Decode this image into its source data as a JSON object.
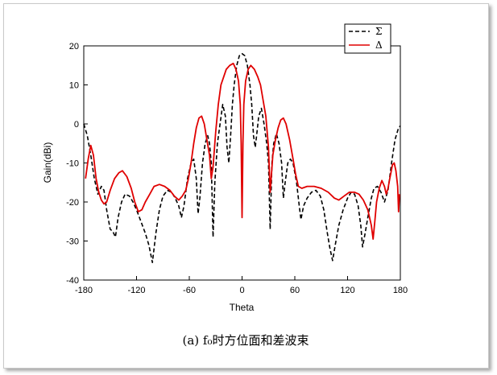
{
  "chart_data": {
    "type": "line",
    "xlabel": "Theta",
    "ylabel": "Gain(dBi)",
    "xlim": [
      -180,
      180
    ],
    "ylim": [
      -40,
      20
    ],
    "xticks": [
      -180,
      -120,
      -60,
      0,
      60,
      120,
      180
    ],
    "yticks": [
      -40,
      -30,
      -20,
      -10,
      0,
      10,
      20
    ],
    "grid": false,
    "legend_position": "top-right",
    "caption": "(a) f₀时方位面和差波束",
    "series": [
      {
        "name": "Σ",
        "color": "#000000",
        "dash": "dashed",
        "points": [
          [
            -180,
            0
          ],
          [
            -176,
            -3
          ],
          [
            -172,
            -8
          ],
          [
            -168,
            -14
          ],
          [
            -164,
            -18
          ],
          [
            -160,
            -16
          ],
          [
            -157,
            -17
          ],
          [
            -154,
            -22
          ],
          [
            -150,
            -27
          ],
          [
            -147,
            -27.5
          ],
          [
            -144,
            -29
          ],
          [
            -141,
            -24
          ],
          [
            -137,
            -20
          ],
          [
            -133,
            -18
          ],
          [
            -128,
            -18.5
          ],
          [
            -124,
            -20
          ],
          [
            -120,
            -22
          ],
          [
            -115,
            -25
          ],
          [
            -110,
            -28
          ],
          [
            -106,
            -31
          ],
          [
            -102,
            -35.5
          ],
          [
            -98,
            -28
          ],
          [
            -94,
            -22
          ],
          [
            -90,
            -18.5
          ],
          [
            -85,
            -17
          ],
          [
            -80,
            -17.5
          ],
          [
            -76,
            -19
          ],
          [
            -72,
            -21
          ],
          [
            -69,
            -24
          ],
          [
            -66,
            -21
          ],
          [
            -62,
            -14
          ],
          [
            -58,
            -10
          ],
          [
            -55,
            -9
          ],
          [
            -52,
            -14
          ],
          [
            -50,
            -23
          ],
          [
            -48,
            -19
          ],
          [
            -45,
            -10
          ],
          [
            -42,
            -5
          ],
          [
            -39,
            -3
          ],
          [
            -37,
            -5
          ],
          [
            -35,
            -10
          ],
          [
            -33,
            -29
          ],
          [
            -31,
            -15
          ],
          [
            -28,
            -5
          ],
          [
            -25,
            0
          ],
          [
            -22,
            5
          ],
          [
            -19,
            2
          ],
          [
            -17,
            -6
          ],
          [
            -15,
            -10
          ],
          [
            -13,
            -3
          ],
          [
            -11,
            5
          ],
          [
            -9,
            10
          ],
          [
            -6,
            15
          ],
          [
            -3,
            17.5
          ],
          [
            0,
            18
          ],
          [
            3,
            17.5
          ],
          [
            6,
            15
          ],
          [
            9,
            10
          ],
          [
            11,
            5
          ],
          [
            13,
            -3
          ],
          [
            15,
            -6
          ],
          [
            17,
            -2
          ],
          [
            19,
            2
          ],
          [
            22,
            4
          ],
          [
            25,
            0
          ],
          [
            28,
            -5
          ],
          [
            30,
            -10
          ],
          [
            32,
            -27
          ],
          [
            34,
            -10
          ],
          [
            36,
            -5
          ],
          [
            39,
            -2.5
          ],
          [
            42,
            -5
          ],
          [
            45,
            -10
          ],
          [
            47,
            -19
          ],
          [
            49,
            -15
          ],
          [
            52,
            -10
          ],
          [
            55,
            -9
          ],
          [
            58,
            -10
          ],
          [
            62,
            -15
          ],
          [
            65,
            -21
          ],
          [
            67,
            -24.5
          ],
          [
            70,
            -21
          ],
          [
            74,
            -19
          ],
          [
            79,
            -17.5
          ],
          [
            84,
            -17
          ],
          [
            89,
            -18.5
          ],
          [
            93,
            -22
          ],
          [
            97,
            -28
          ],
          [
            100,
            -32
          ],
          [
            103,
            -35
          ],
          [
            106,
            -31
          ],
          [
            110,
            -26
          ],
          [
            115,
            -22
          ],
          [
            120,
            -19
          ],
          [
            124,
            -17.5
          ],
          [
            128,
            -18
          ],
          [
            132,
            -21
          ],
          [
            135,
            -26
          ],
          [
            137,
            -31.5
          ],
          [
            140,
            -28
          ],
          [
            143,
            -24
          ],
          [
            147,
            -19
          ],
          [
            150,
            -16.5
          ],
          [
            154,
            -16
          ],
          [
            158,
            -17.5
          ],
          [
            162,
            -20
          ],
          [
            166,
            -17
          ],
          [
            170,
            -10
          ],
          [
            174,
            -4
          ],
          [
            178,
            -1
          ],
          [
            180,
            -0.5
          ]
        ]
      },
      {
        "name": "Δ",
        "color": "#e00000",
        "dash": "solid",
        "points": [
          [
            -178,
            -14
          ],
          [
            -175,
            -9
          ],
          [
            -172,
            -5.5
          ],
          [
            -169,
            -8
          ],
          [
            -166,
            -14
          ],
          [
            -163,
            -17.5
          ],
          [
            -160,
            -19.5
          ],
          [
            -157,
            -20.5
          ],
          [
            -154,
            -20
          ],
          [
            -150,
            -17
          ],
          [
            -145,
            -14
          ],
          [
            -140,
            -12.5
          ],
          [
            -136,
            -12
          ],
          [
            -131,
            -13.5
          ],
          [
            -126,
            -16.5
          ],
          [
            -122,
            -20
          ],
          [
            -118,
            -22.5
          ],
          [
            -114,
            -22
          ],
          [
            -110,
            -20
          ],
          [
            -105,
            -18
          ],
          [
            -100,
            -16
          ],
          [
            -94,
            -15.5
          ],
          [
            -88,
            -16
          ],
          [
            -82,
            -17
          ],
          [
            -77,
            -18.5
          ],
          [
            -72,
            -19.5
          ],
          [
            -68,
            -18.5
          ],
          [
            -64,
            -17
          ],
          [
            -61,
            -14
          ],
          [
            -58,
            -10
          ],
          [
            -55,
            -5
          ],
          [
            -52,
            -1
          ],
          [
            -49,
            1.5
          ],
          [
            -46,
            2
          ],
          [
            -43,
            0
          ],
          [
            -40,
            -4
          ],
          [
            -37,
            -8
          ],
          [
            -35,
            -14
          ],
          [
            -33,
            -11
          ],
          [
            -30,
            -2
          ],
          [
            -27,
            5
          ],
          [
            -24,
            10
          ],
          [
            -21,
            12
          ],
          [
            -18,
            14
          ],
          [
            -14,
            15
          ],
          [
            -10,
            15.5
          ],
          [
            -7,
            14
          ],
          [
            -4,
            11
          ],
          [
            -2,
            5
          ],
          [
            -1,
            -5
          ],
          [
            0,
            -24
          ],
          [
            1,
            -5
          ],
          [
            2,
            5
          ],
          [
            4,
            11
          ],
          [
            7,
            14
          ],
          [
            10,
            15
          ],
          [
            14,
            14
          ],
          [
            18,
            12
          ],
          [
            21,
            10
          ],
          [
            24,
            6
          ],
          [
            27,
            2
          ],
          [
            30,
            -6
          ],
          [
            32,
            -17.5
          ],
          [
            35,
            -8
          ],
          [
            38,
            -4
          ],
          [
            41,
            -1
          ],
          [
            44,
            1
          ],
          [
            47,
            1.5
          ],
          [
            50,
            0
          ],
          [
            54,
            -4
          ],
          [
            58,
            -9
          ],
          [
            61,
            -13
          ],
          [
            64,
            -16
          ],
          [
            68,
            -16.5
          ],
          [
            74,
            -16
          ],
          [
            82,
            -16
          ],
          [
            90,
            -16.5
          ],
          [
            98,
            -17.5
          ],
          [
            105,
            -19
          ],
          [
            110,
            -19.5
          ],
          [
            116,
            -18.5
          ],
          [
            122,
            -17.5
          ],
          [
            128,
            -17.5
          ],
          [
            133,
            -18
          ],
          [
            138,
            -19.5
          ],
          [
            143,
            -22
          ],
          [
            147,
            -26
          ],
          [
            149,
            -29.5
          ],
          [
            151,
            -25
          ],
          [
            153,
            -20
          ],
          [
            156,
            -16.5
          ],
          [
            159,
            -14.5
          ],
          [
            162,
            -16
          ],
          [
            164,
            -18
          ],
          [
            166,
            -16.5
          ],
          [
            168,
            -14
          ],
          [
            171,
            -10.5
          ],
          [
            173,
            -10
          ],
          [
            175,
            -12
          ],
          [
            177,
            -16
          ],
          [
            178,
            -22.5
          ],
          [
            179,
            -18
          ]
        ]
      }
    ]
  }
}
